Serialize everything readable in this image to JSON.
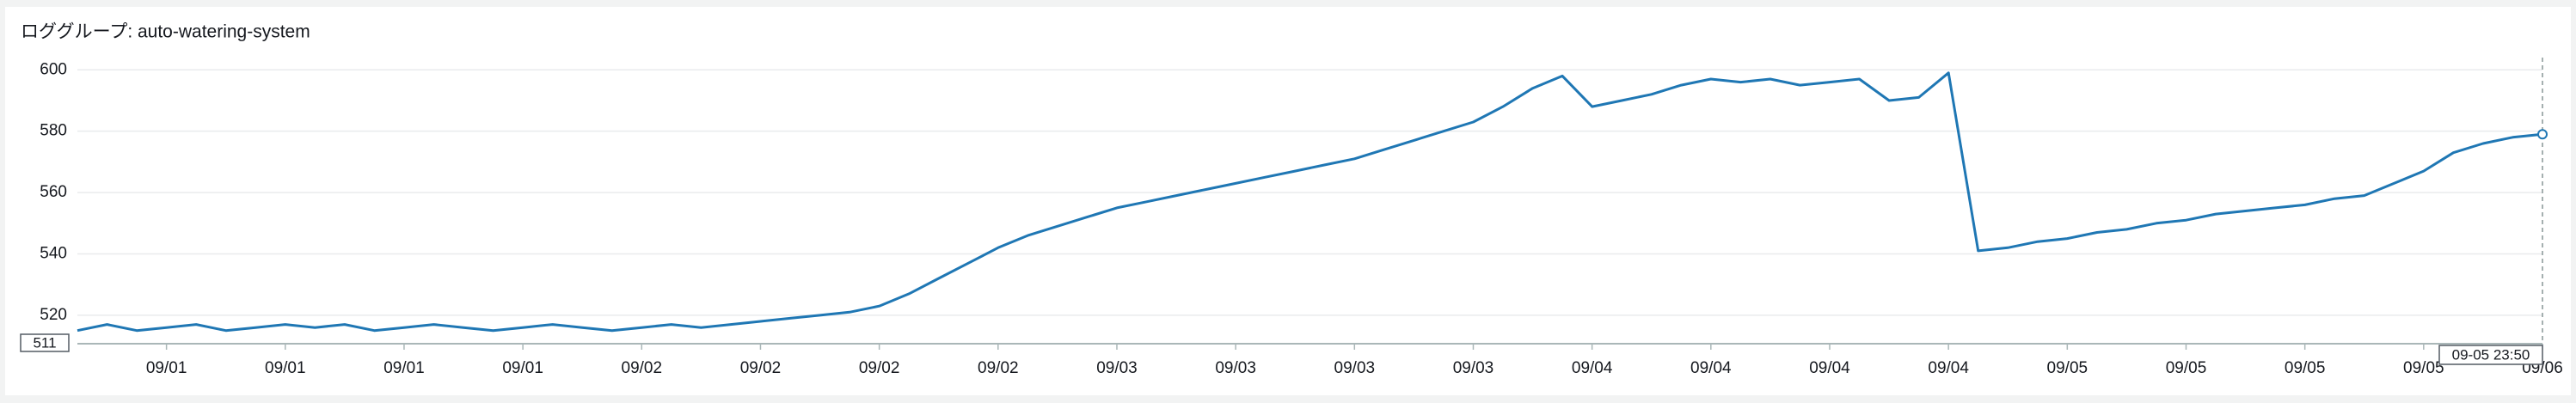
{
  "chart_data": {
    "type": "line",
    "title": "ロググループ: auto-watering-system",
    "categories": [
      null,
      null,
      null,
      "09/01",
      null,
      null,
      null,
      "09/01",
      null,
      null,
      null,
      "09/01",
      null,
      null,
      null,
      "09/01",
      null,
      null,
      null,
      "09/02",
      null,
      null,
      null,
      "09/02",
      null,
      null,
      null,
      "09/02",
      null,
      null,
      null,
      "09/02",
      null,
      null,
      null,
      "09/03",
      null,
      null,
      null,
      "09/03",
      null,
      null,
      null,
      "09/03",
      null,
      null,
      null,
      "09/03",
      null,
      null,
      null,
      "09/04",
      null,
      null,
      null,
      "09/04",
      null,
      null,
      null,
      "09/04",
      null,
      null,
      null,
      "09/04",
      null,
      null,
      null,
      "09/05",
      null,
      null,
      null,
      "09/05",
      null,
      null,
      null,
      "09/05",
      null,
      null,
      null,
      "09/05",
      null,
      null,
      null,
      "09/06"
    ],
    "values": [
      515,
      517,
      515,
      516,
      517,
      515,
      516,
      517,
      516,
      517,
      515,
      516,
      517,
      516,
      515,
      516,
      517,
      516,
      515,
      516,
      517,
      516,
      517,
      518,
      519,
      520,
      521,
      523,
      527,
      532,
      537,
      542,
      546,
      549,
      552,
      555,
      557,
      559,
      561,
      563,
      565,
      567,
      569,
      571,
      574,
      577,
      580,
      583,
      588,
      594,
      598,
      588,
      590,
      592,
      595,
      597,
      596,
      597,
      595,
      596,
      597,
      590,
      591,
      599,
      541,
      542,
      544,
      545,
      547,
      548,
      550,
      551,
      553,
      554,
      555,
      556,
      558,
      559,
      563,
      567,
      573,
      576,
      578,
      579
    ],
    "color": "#1f77b4",
    "ylim": [
      511,
      604
    ],
    "yticks": [
      520,
      540,
      560,
      580,
      600
    ],
    "grid": true,
    "crosshair_y": 511,
    "crosshair_x": "09-05 23:50"
  }
}
